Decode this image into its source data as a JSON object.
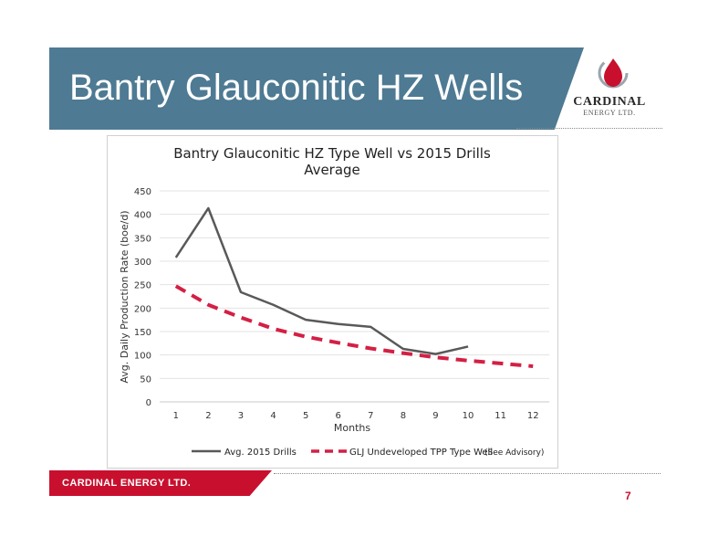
{
  "slide": {
    "title": "Bantry Glauconitic HZ Wells",
    "page_number": "7",
    "footer_text": "CARDINAL ENERGY LTD."
  },
  "logo": {
    "name": "CARDINAL",
    "subtitle": "ENERGY LTD."
  },
  "colors": {
    "banner": "#4e7a93",
    "accent_red": "#c8102e",
    "series_drills": "#595959",
    "series_type_well": "#d41f44"
  },
  "chart_data": {
    "type": "line",
    "title_lines": [
      "Bantry Glauconitic HZ Type Well vs 2015 Drills",
      "Average"
    ],
    "xlabel": "Months",
    "ylabel": "Avg. Daily Production Rate (boe/d)",
    "x": [
      1,
      2,
      3,
      4,
      5,
      6,
      7,
      8,
      9,
      10,
      11,
      12
    ],
    "ylim": [
      0,
      450
    ],
    "yticks": [
      0,
      50,
      100,
      150,
      200,
      250,
      300,
      350,
      400,
      450
    ],
    "grid": "horizontal",
    "legend_position": "bottom",
    "legend_note": "(See Advisory)",
    "series": [
      {
        "name": "Avg. 2015 Drills",
        "style": "solid",
        "values": [
          308,
          413,
          234,
          207,
          175,
          166,
          160,
          113,
          102,
          118,
          null,
          null
        ]
      },
      {
        "name": "GLJ Undeveloped TPP Type Well",
        "style": "dashed",
        "values": [
          247,
          207,
          180,
          156,
          139,
          126,
          114,
          104,
          95,
          88,
          82,
          76
        ]
      }
    ]
  }
}
